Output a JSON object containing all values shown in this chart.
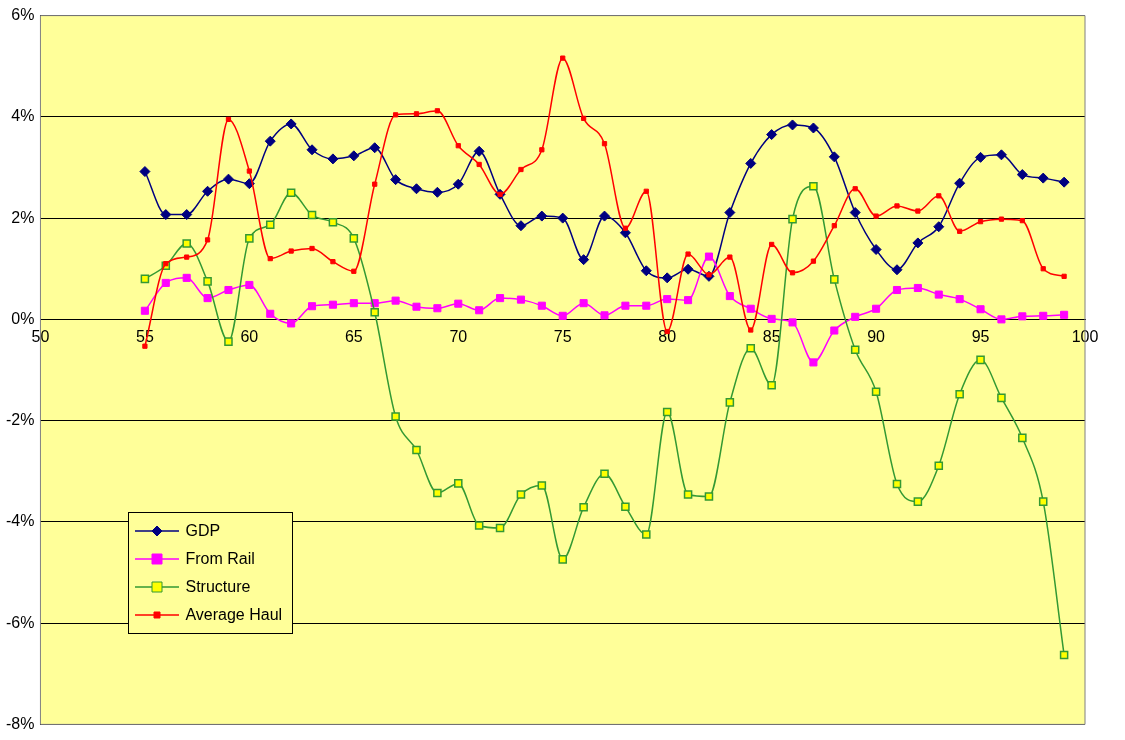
{
  "chart_data": {
    "type": "line",
    "x": [
      55,
      56,
      57,
      58,
      59,
      60,
      61,
      62,
      63,
      64,
      65,
      66,
      67,
      68,
      69,
      70,
      71,
      72,
      73,
      74,
      75,
      76,
      77,
      78,
      79,
      80,
      81,
      82,
      83,
      84,
      85,
      86,
      87,
      88,
      89,
      90,
      91,
      92,
      93,
      94,
      95,
      96,
      97,
      98,
      99
    ],
    "xlim": [
      50,
      100
    ],
    "xticks": [
      50,
      55,
      60,
      65,
      70,
      75,
      80,
      85,
      90,
      95,
      100
    ],
    "ylim": [
      -8,
      6
    ],
    "yticks": [
      {
        "value": -8,
        "label": "-8%"
      },
      {
        "value": -6,
        "label": "-6%"
      },
      {
        "value": -4,
        "label": "-4%"
      },
      {
        "value": -2,
        "label": "-2%"
      },
      {
        "value": 0,
        "label": "0%"
      },
      {
        "value": 2,
        "label": "2%"
      },
      {
        "value": 4,
        "label": "4%"
      },
      {
        "value": 6,
        "label": "6%"
      }
    ],
    "grid": "y",
    "legend": "bottom left",
    "line_style": "solid",
    "series": [
      {
        "name": "GDP",
        "color": "#000080",
        "marker": "diamond",
        "values": [
          2.92,
          2.07,
          2.07,
          2.53,
          2.77,
          2.68,
          3.52,
          3.86,
          3.35,
          3.17,
          3.23,
          3.39,
          2.76,
          2.58,
          2.51,
          2.67,
          3.32,
          2.47,
          1.85,
          2.04,
          2.0,
          1.18,
          2.04,
          1.71,
          0.96,
          0.82,
          0.99,
          0.85,
          2.11,
          3.08,
          3.65,
          3.84,
          3.78,
          3.21,
          2.11,
          1.38,
          0.98,
          1.51,
          1.83,
          2.69,
          3.2,
          3.25,
          2.86,
          2.79,
          2.71
        ]
      },
      {
        "name": "From Rail",
        "color": "#ff00ff",
        "marker": "square",
        "values": [
          0.17,
          0.72,
          0.82,
          0.42,
          0.58,
          0.68,
          0.11,
          -0.08,
          0.26,
          0.29,
          0.32,
          0.32,
          0.37,
          0.25,
          0.22,
          0.31,
          0.18,
          0.42,
          0.39,
          0.27,
          0.07,
          0.32,
          0.08,
          0.27,
          0.27,
          0.4,
          0.38,
          1.24,
          0.46,
          0.21,
          0.01,
          -0.06,
          -0.85,
          -0.22,
          0.05,
          0.21,
          0.58,
          0.62,
          0.49,
          0.4,
          0.2,
          0.0,
          0.06,
          0.07,
          0.09
        ]
      },
      {
        "name": "Structure",
        "color": "#339933",
        "marker": "square",
        "values": [
          0.8,
          1.06,
          1.5,
          0.75,
          -0.44,
          1.6,
          1.87,
          2.5,
          2.06,
          1.92,
          1.6,
          0.14,
          -1.92,
          -2.58,
          -3.43,
          -3.24,
          -4.07,
          -4.12,
          -3.46,
          -3.28,
          -4.74,
          -3.71,
          -3.05,
          -3.7,
          -4.25,
          -1.83,
          -3.46,
          -3.5,
          -1.64,
          -0.57,
          -1.3,
          1.98,
          2.63,
          0.79,
          -0.6,
          -1.43,
          -3.25,
          -3.6,
          -2.89,
          -1.48,
          -0.8,
          -1.55,
          -2.34,
          -3.6,
          -6.63
        ]
      },
      {
        "name": "Average Haul",
        "color": "#ff0000",
        "marker": "square",
        "values": [
          -0.53,
          1.1,
          1.23,
          1.57,
          3.95,
          2.93,
          1.2,
          1.35,
          1.4,
          1.14,
          0.95,
          2.67,
          4.04,
          4.06,
          4.12,
          3.43,
          3.06,
          2.47,
          2.96,
          3.35,
          5.16,
          3.97,
          3.47,
          1.8,
          2.53,
          -0.24,
          1.29,
          0.88,
          1.23,
          -0.21,
          1.48,
          0.92,
          1.15,
          1.85,
          2.58,
          2.04,
          2.24,
          2.14,
          2.44,
          1.74,
          1.93,
          1.98,
          1.95,
          1.0,
          0.85
        ]
      }
    ]
  }
}
